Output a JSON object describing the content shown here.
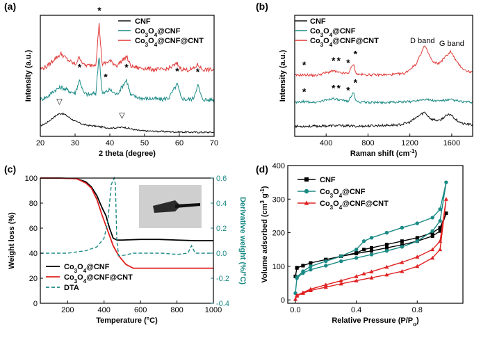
{
  "watermark": "",
  "chart_data": [
    {
      "panel": "(a)",
      "type": "line",
      "xlabel": "2 theta (degree)",
      "ylabel": "Intensity (a.u.)",
      "xlim": [
        20,
        70
      ],
      "xticks": [
        "20",
        "30",
        "40",
        "50",
        "60",
        "70"
      ],
      "series": [
        {
          "name": "CNF",
          "color": "#111111",
          "offset": 0,
          "x": [
            20,
            22,
            24,
            25,
            26,
            27,
            28,
            30,
            32,
            34,
            36,
            38,
            40,
            42,
            44,
            46,
            48,
            50,
            55,
            60,
            65,
            70
          ],
          "y": [
            0.28,
            0.42,
            0.62,
            0.72,
            0.75,
            0.72,
            0.63,
            0.46,
            0.36,
            0.3,
            0.28,
            0.24,
            0.21,
            0.22,
            0.24,
            0.18,
            0.12,
            0.1,
            0.08,
            0.06,
            0.05,
            0.05
          ]
        },
        {
          "name": "Co3O4@CNF",
          "color": "#1a8a85",
          "offset": 1.05,
          "x": [
            20,
            22,
            24,
            26,
            28,
            30,
            31.3,
            32.5,
            34,
            36,
            36.9,
            37.8,
            40,
            42,
            44.8,
            46,
            48,
            50,
            52,
            55,
            57,
            59.4,
            60.5,
            62,
            64,
            65.3,
            66.5,
            68,
            70
          ],
          "y": [
            0.22,
            0.32,
            0.55,
            0.68,
            0.55,
            0.45,
            0.95,
            0.45,
            0.4,
            0.45,
            1.9,
            0.42,
            0.58,
            0.4,
            0.95,
            0.38,
            0.3,
            0.25,
            0.25,
            0.22,
            0.28,
            0.8,
            0.28,
            0.22,
            0.25,
            0.78,
            0.25,
            0.2,
            0.22
          ]
        },
        {
          "name": "Co3O4@CNF@CNT",
          "color": "#e03a3a",
          "offset": 2.15,
          "x": [
            20,
            22,
            24,
            26,
            28,
            30,
            31.3,
            32.5,
            34,
            36,
            36.9,
            37.8,
            40,
            42,
            44.8,
            46,
            48,
            50,
            52,
            55,
            57,
            59.4,
            60.5,
            62,
            64,
            65.3,
            66.5,
            68,
            70
          ],
          "y": [
            0.25,
            0.35,
            0.62,
            0.82,
            0.58,
            0.42,
            0.7,
            0.4,
            0.38,
            0.45,
            1.95,
            0.42,
            0.55,
            0.38,
            0.72,
            0.36,
            0.3,
            0.28,
            0.25,
            0.22,
            0.28,
            0.45,
            0.26,
            0.22,
            0.25,
            0.42,
            0.24,
            0.22,
            0.22
          ]
        }
      ],
      "annotations": [
        {
          "text": "*",
          "x": 37,
          "series": 2
        },
        {
          "text": "*",
          "x": 31.3,
          "series": 1
        },
        {
          "text": "*",
          "x": 38.8,
          "series": 1
        },
        {
          "text": "*",
          "x": 44.8,
          "series": 1
        },
        {
          "text": "*",
          "x": 59.4,
          "series": 1
        },
        {
          "text": "*",
          "x": 65.3,
          "series": 1
        },
        {
          "text": "▽",
          "x": 25.5,
          "series": 0
        },
        {
          "text": "▽",
          "x": 43.5,
          "series": 0
        }
      ]
    },
    {
      "panel": "(b)",
      "type": "line",
      "xlabel": "Raman shift (cm",
      "xlabel_sup": "-1",
      "xlabel_end": ")",
      "ylabel": "Intensity (a.u.)",
      "xlim": [
        100,
        1800
      ],
      "xticks": [
        "400",
        "800",
        "1200",
        "1600"
      ],
      "xtick_values": [
        400,
        800,
        1200,
        1600
      ],
      "labels": {
        "d_band": "D band",
        "g_band": "G band"
      },
      "series": [
        {
          "name": "CNF",
          "color": "#111111",
          "offset": 0,
          "x": [
            100,
            300,
            500,
            700,
            900,
            1100,
            1200,
            1280,
            1340,
            1400,
            1480,
            1540,
            1590,
            1640,
            1700,
            1800
          ],
          "y": [
            0.1,
            0.1,
            0.12,
            0.1,
            0.12,
            0.14,
            0.22,
            0.4,
            0.52,
            0.32,
            0.26,
            0.4,
            0.46,
            0.3,
            0.18,
            0.14
          ]
        },
        {
          "name": "Co3O4@CNF",
          "color": "#1a8a85",
          "offset": 0.75,
          "x": [
            100,
            190,
            300,
            470,
            520,
            610,
            660,
            690,
            800,
            1000,
            1200,
            1340,
            1450,
            1590,
            1700,
            1800
          ],
          "y": [
            0.05,
            0.08,
            0.06,
            0.18,
            0.12,
            0.1,
            0.35,
            0.08,
            0.06,
            0.06,
            0.08,
            0.16,
            0.1,
            0.14,
            0.08,
            0.06
          ]
        },
        {
          "name": "Co3O4@CNF@CNT",
          "color": "#e03a3a",
          "offset": 1.55,
          "x": [
            100,
            190,
            300,
            470,
            520,
            610,
            660,
            690,
            800,
            1000,
            1150,
            1260,
            1340,
            1420,
            1480,
            1540,
            1590,
            1650,
            1720,
            1800
          ],
          "y": [
            0.06,
            0.08,
            0.06,
            0.2,
            0.14,
            0.12,
            0.4,
            0.1,
            0.08,
            0.08,
            0.12,
            0.4,
            0.95,
            0.45,
            0.42,
            0.62,
            0.78,
            0.45,
            0.22,
            0.14
          ]
        }
      ],
      "annotations": [
        {
          "text": "*",
          "x": 190,
          "series": 2
        },
        {
          "text": "*",
          "x": 470,
          "series": 2
        },
        {
          "text": "*",
          "x": 520,
          "series": 2
        },
        {
          "text": "*",
          "x": 610,
          "series": 2
        },
        {
          "text": "*",
          "x": 680,
          "series": 2
        },
        {
          "text": "*",
          "x": 190,
          "series": 1
        },
        {
          "text": "*",
          "x": 470,
          "series": 1
        },
        {
          "text": "*",
          "x": 520,
          "series": 1
        },
        {
          "text": "*",
          "x": 610,
          "series": 1
        },
        {
          "text": "*",
          "x": 680,
          "series": 1
        }
      ]
    },
    {
      "panel": "(c)",
      "type": "line",
      "xlabel": "Temperature (°C)",
      "ylabel": "Weight loss (%)",
      "y2label": "Derivative weight (%/°C)",
      "xlim": [
        50,
        1000
      ],
      "ylim": [
        0,
        100
      ],
      "y2lim": [
        -0.4,
        0.6
      ],
      "xticks": [
        "200",
        "400",
        "600",
        "800",
        "1000"
      ],
      "xtick_values": [
        200,
        400,
        600,
        800,
        1000
      ],
      "yticks": [
        "0",
        "20",
        "40",
        "60",
        "80",
        "100"
      ],
      "y2ticks": [
        "-0.4",
        "-0.2",
        "0.0",
        "0.2",
        "0.4",
        "0.6"
      ],
      "series": [
        {
          "name": "Co3O4@CNF",
          "color": "#000000",
          "axis": "left",
          "x": [
            50,
            150,
            250,
            300,
            330,
            360,
            390,
            410,
            430,
            450,
            470,
            500,
            600,
            700,
            800,
            900,
            1000
          ],
          "y": [
            100,
            100,
            99.5,
            97,
            93,
            86,
            76,
            70,
            60,
            52,
            50.5,
            50.5,
            51,
            51,
            50.5,
            50,
            50
          ]
        },
        {
          "name": "Co3O4@CNF@CNT",
          "color": "#e02020",
          "axis": "left",
          "x": [
            50,
            150,
            250,
            300,
            330,
            360,
            390,
            420,
            450,
            480,
            520,
            560,
            600,
            700,
            800,
            900,
            1000
          ],
          "y": [
            100,
            100,
            99.5,
            96,
            92,
            83,
            70,
            58,
            46,
            38,
            31,
            28,
            28,
            28,
            28,
            28,
            28
          ]
        },
        {
          "name": "DTA",
          "color": "#1a8a85",
          "axis": "right",
          "dashed": true,
          "x": [
            50,
            200,
            300,
            360,
            400,
            420,
            440,
            455,
            462,
            470,
            480,
            500,
            560,
            640,
            720,
            800,
            860,
            880,
            900,
            950,
            1000
          ],
          "y": [
            0.0,
            0.0,
            0.02,
            0.05,
            0.12,
            0.25,
            0.55,
            0.6,
            0.55,
            0.1,
            -0.02,
            -0.02,
            0.0,
            0.0,
            0.0,
            -0.01,
            0.0,
            0.06,
            0.0,
            0.0,
            0.0
          ]
        }
      ],
      "inset": "photo"
    },
    {
      "panel": "(d)",
      "type": "line",
      "xlabel": "Relative Pressure (P/P",
      "xlabel_sub": "o",
      "xlabel_end": ")",
      "ylabel": "Volume adsorbed (cm",
      "ylabel_sup": "3",
      "ylabel_mid": " g",
      "ylabel_sup2": "-1",
      "ylabel_end": ")",
      "xlim": [
        -0.05,
        1.1
      ],
      "ylim": [
        -10,
        400
      ],
      "xticks": [
        "0.0",
        "0.4",
        "0.8"
      ],
      "xtick_values": [
        0.0,
        0.4,
        0.8
      ],
      "yticks": [
        "0",
        "100",
        "200",
        "300",
        "400"
      ],
      "ytick_values": [
        0,
        100,
        200,
        300,
        400
      ],
      "series": [
        {
          "name": "CNF",
          "color": "#000000",
          "marker": "square",
          "x": [
            0.0,
            0.01,
            0.05,
            0.1,
            0.2,
            0.3,
            0.4,
            0.5,
            0.6,
            0.7,
            0.8,
            0.9,
            0.95,
            0.99,
            0.95,
            0.9,
            0.8,
            0.7,
            0.6,
            0.5,
            0.45,
            0.4,
            0.3,
            0.2,
            0.1,
            0.05,
            0.01
          ],
          "y": [
            70,
            95,
            102,
            110,
            120,
            130,
            138,
            146,
            155,
            164,
            175,
            190,
            205,
            258,
            215,
            200,
            185,
            175,
            165,
            155,
            150,
            140,
            130,
            120,
            110,
            102,
            96
          ]
        },
        {
          "name": "Co3O4@CNF",
          "color": "#1a8a85",
          "marker": "circle",
          "x": [
            0.0,
            0.01,
            0.05,
            0.1,
            0.2,
            0.3,
            0.4,
            0.5,
            0.6,
            0.7,
            0.8,
            0.9,
            0.95,
            0.99,
            0.95,
            0.9,
            0.8,
            0.7,
            0.6,
            0.5,
            0.45,
            0.4,
            0.3,
            0.2,
            0.1,
            0.05,
            0.01
          ],
          "y": [
            20,
            65,
            80,
            90,
            102,
            115,
            125,
            135,
            146,
            158,
            175,
            205,
            235,
            350,
            270,
            245,
            228,
            215,
            200,
            185,
            175,
            150,
            130,
            115,
            100,
            85,
            68
          ]
        },
        {
          "name": "Co3O4@CNF@CNT",
          "color": "#e02020",
          "marker": "triangle",
          "x": [
            0.0,
            0.01,
            0.05,
            0.1,
            0.2,
            0.3,
            0.4,
            0.5,
            0.6,
            0.7,
            0.8,
            0.9,
            0.95,
            0.99,
            0.95,
            0.9,
            0.8,
            0.7,
            0.6,
            0.5,
            0.45,
            0.4,
            0.3,
            0.2,
            0.1,
            0.05,
            0.01
          ],
          "y": [
            2,
            12,
            20,
            28,
            38,
            48,
            57,
            66,
            75,
            85,
            100,
            125,
            150,
            300,
            175,
            150,
            128,
            112,
            98,
            84,
            78,
            70,
            57,
            45,
            32,
            22,
            14
          ]
        }
      ]
    }
  ]
}
